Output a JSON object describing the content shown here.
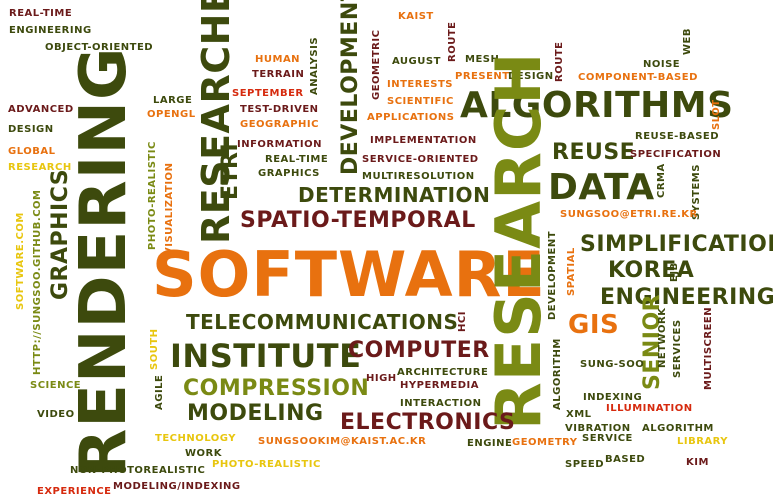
{
  "colors": {
    "dark_green": "#3d4a0d",
    "olive": "#7a8a14",
    "orange": "#e8710f",
    "maroon": "#6b1a1a",
    "yellow": "#e8c60f",
    "red": "#d62a0e"
  },
  "words": [
    "real-time",
    "engineering",
    "object-oriented",
    "advanced",
    "design",
    "global",
    "research",
    "rendering",
    "graphics",
    "software.com",
    "http://sungsoo.github.com",
    "science",
    "video",
    "experience",
    "non-photorealistic",
    "modeling/indexing",
    "technology",
    "work",
    "photo-realistic",
    "sungsookim@kaist.ac.kr",
    "large",
    "opengl",
    "photo-realistic",
    "visualization",
    "south",
    "agile",
    "researcher",
    "etri",
    "human",
    "terrain",
    "analysis",
    "september",
    "test-driven",
    "geographic",
    "information",
    "real-time",
    "graphics",
    "developments",
    "multiresolution",
    "service-oriented",
    "implementation",
    "applications",
    "scientific",
    "interests",
    "present",
    "kaist",
    "august",
    "geometric",
    "route",
    "mesh",
    "design",
    "route",
    "noise",
    "web",
    "component-based",
    "algorithms",
    "reuse",
    "reuse-based",
    "specification",
    "slot",
    "data",
    "crma",
    "systems",
    "sungsoo@etri.re.kr",
    "determination",
    "spatio-temporal",
    "software",
    "research",
    "simplification",
    "korea",
    "engineering",
    "gis",
    "ejb",
    "spatial",
    "development",
    "telecommunications",
    "institute",
    "computer",
    "compression",
    "modeling",
    "electronics",
    "hci",
    "architecture",
    "high",
    "hypermedia",
    "interaction",
    "senior",
    "sung-soo",
    "network",
    "services",
    "multiscreen",
    "algorithm",
    "indexing",
    "xml",
    "illumination",
    "vibration",
    "algorithm",
    "geometry",
    "service",
    "engine",
    "speed",
    "based",
    "library",
    "kim"
  ]
}
